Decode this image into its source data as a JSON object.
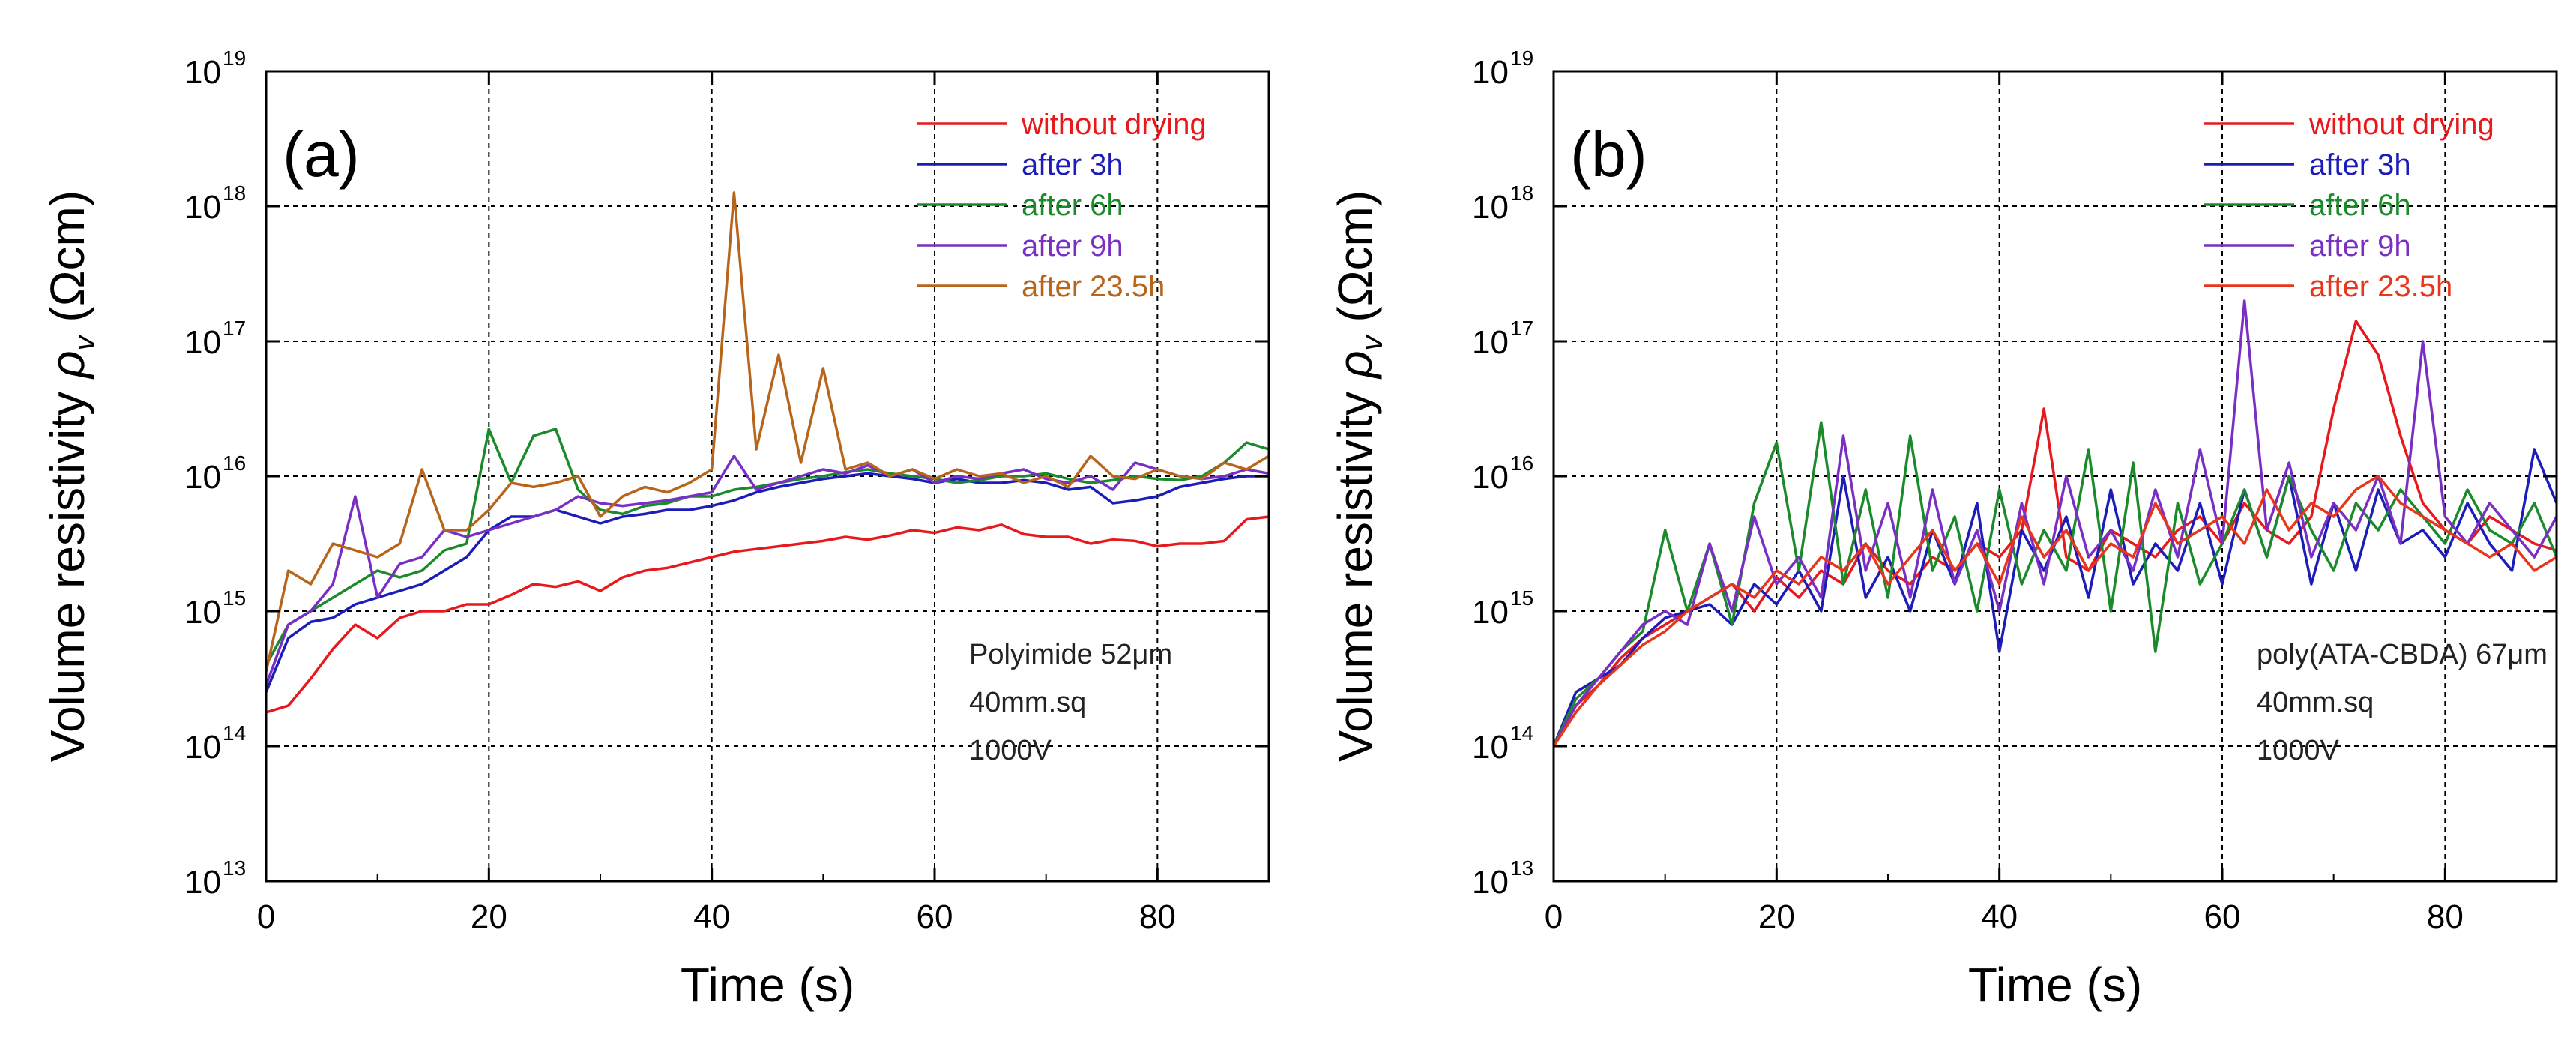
{
  "chart_data": [
    {
      "panel_label": "(a)",
      "type": "line",
      "title": "",
      "xlabel": "Time (s)",
      "ylabel": "Volume resistivity ρv (Ωcm)",
      "ylabel_main": "Volume resistivity ",
      "ylabel_symbol": "ρ",
      "ylabel_sub": "v",
      "ylabel_unit": " (Ωcm)",
      "xlim": [
        0,
        90
      ],
      "ylim_exp": [
        13,
        19
      ],
      "y_scale": "log",
      "xticks": [
        0,
        20,
        40,
        60,
        80
      ],
      "xtick_labels": [
        "0",
        "20",
        "40",
        "60",
        "80"
      ],
      "yticks_exp": [
        13,
        14,
        15,
        16,
        17,
        18,
        19
      ],
      "ytick_base": "10",
      "ytick_exponents": [
        "13",
        "14",
        "15",
        "16",
        "17",
        "18",
        "19"
      ],
      "grid": true,
      "legend_position": "top-right",
      "annotations": [
        "Polyimide 52μm",
        "40mm.sq",
        "1000V"
      ],
      "x": [
        0,
        2,
        4,
        6,
        8,
        10,
        12,
        14,
        16,
        18,
        20,
        22,
        24,
        26,
        28,
        30,
        32,
        34,
        36,
        38,
        40,
        42,
        44,
        46,
        48,
        50,
        52,
        54,
        56,
        58,
        60,
        62,
        64,
        66,
        68,
        70,
        72,
        74,
        76,
        78,
        80,
        82,
        84,
        86,
        88,
        90
      ],
      "series": [
        {
          "name": "without drying",
          "color": "#e8191d",
          "log10_values": [
            14.25,
            14.3,
            14.5,
            14.72,
            14.9,
            14.8,
            14.95,
            15.0,
            15.0,
            15.05,
            15.05,
            15.12,
            15.2,
            15.18,
            15.22,
            15.15,
            15.25,
            15.3,
            15.32,
            15.36,
            15.4,
            15.44,
            15.46,
            15.48,
            15.5,
            15.52,
            15.55,
            15.53,
            15.56,
            15.6,
            15.58,
            15.62,
            15.6,
            15.64,
            15.57,
            15.55,
            15.55,
            15.5,
            15.53,
            15.52,
            15.48,
            15.5,
            15.5,
            15.52,
            15.68,
            15.7
          ]
        },
        {
          "name": "after 3h",
          "color": "#1c1cb8",
          "log10_values": [
            14.4,
            14.8,
            14.92,
            14.95,
            15.05,
            15.1,
            15.15,
            15.2,
            15.3,
            15.4,
            15.6,
            15.7,
            15.7,
            15.75,
            15.7,
            15.65,
            15.7,
            15.72,
            15.75,
            15.75,
            15.78,
            15.82,
            15.88,
            15.92,
            15.95,
            15.98,
            16.0,
            16.02,
            16.0,
            15.98,
            15.95,
            15.98,
            15.95,
            15.95,
            15.97,
            15.95,
            15.9,
            15.92,
            15.8,
            15.82,
            15.85,
            15.92,
            15.95,
            15.98,
            16.0,
            16.0
          ]
        },
        {
          "name": "after 6h",
          "color": "#1a8a2a",
          "log10_values": [
            14.6,
            14.9,
            15.0,
            15.1,
            15.2,
            15.3,
            15.25,
            15.3,
            15.45,
            15.5,
            16.35,
            15.95,
            16.3,
            16.35,
            15.9,
            15.75,
            15.72,
            15.78,
            15.8,
            15.85,
            15.85,
            15.9,
            15.92,
            15.95,
            15.98,
            16.0,
            16.03,
            16.05,
            16.02,
            16.0,
            15.98,
            15.95,
            15.97,
            16.0,
            16.0,
            16.02,
            15.98,
            15.95,
            15.97,
            16.0,
            15.98,
            15.97,
            16.0,
            16.1,
            16.25,
            16.2
          ]
        },
        {
          "name": "after 9h",
          "color": "#7a2fc4",
          "log10_values": [
            14.45,
            14.9,
            15.0,
            15.2,
            15.85,
            15.1,
            15.35,
            15.4,
            15.6,
            15.55,
            15.6,
            15.65,
            15.7,
            15.75,
            15.85,
            15.8,
            15.78,
            15.8,
            15.82,
            15.85,
            15.88,
            16.15,
            15.9,
            15.95,
            16.0,
            16.05,
            16.02,
            16.08,
            16.0,
            16.05,
            15.95,
            16.0,
            15.98,
            16.02,
            16.05,
            15.98,
            15.95,
            16.0,
            15.9,
            16.1,
            16.05,
            16.0,
            15.98,
            16.0,
            16.05,
            16.02
          ]
        },
        {
          "name": "after 23.5h",
          "color": "#b8651c",
          "log10_values": [
            14.55,
            15.3,
            15.2,
            15.5,
            15.45,
            15.4,
            15.5,
            16.05,
            15.6,
            15.6,
            15.75,
            15.95,
            15.92,
            15.95,
            16.0,
            15.7,
            15.85,
            15.92,
            15.88,
            15.95,
            16.05,
            18.1,
            16.2,
            16.9,
            16.1,
            16.8,
            16.05,
            16.1,
            16.0,
            16.05,
            15.98,
            16.05,
            16.0,
            16.02,
            15.95,
            16.0,
            15.92,
            16.15,
            16.0,
            15.98,
            16.05,
            16.0,
            15.98,
            16.1,
            16.05,
            16.15
          ]
        }
      ]
    },
    {
      "panel_label": "(b)",
      "type": "line",
      "title": "",
      "xlabel": "Time (s)",
      "ylabel": "Volume resistivity ρv (Ωcm)",
      "ylabel_main": "Volume resistivity ",
      "ylabel_symbol": "ρ",
      "ylabel_sub": "v",
      "ylabel_unit": " (Ωcm)",
      "xlim": [
        0,
        90
      ],
      "ylim_exp": [
        13,
        19
      ],
      "y_scale": "log",
      "xticks": [
        0,
        20,
        40,
        60,
        80
      ],
      "xtick_labels": [
        "0",
        "20",
        "40",
        "60",
        "80"
      ],
      "yticks_exp": [
        13,
        14,
        15,
        16,
        17,
        18,
        19
      ],
      "ytick_base": "10",
      "ytick_exponents": [
        "13",
        "14",
        "15",
        "16",
        "17",
        "18",
        "19"
      ],
      "grid": true,
      "legend_position": "top-right",
      "annotations": [
        "poly(ATA-CBDA) 67μm",
        "40mm.sq",
        "1000V"
      ],
      "x": [
        0,
        2,
        4,
        6,
        8,
        10,
        12,
        14,
        16,
        18,
        20,
        22,
        24,
        26,
        28,
        30,
        32,
        34,
        36,
        38,
        40,
        42,
        44,
        46,
        48,
        50,
        52,
        54,
        56,
        58,
        60,
        62,
        64,
        66,
        68,
        70,
        72,
        74,
        76,
        78,
        80,
        82,
        84,
        86,
        88,
        90
      ],
      "series": [
        {
          "name": "without drying",
          "color": "#e8191d",
          "log10_values": [
            14.0,
            14.3,
            14.45,
            14.65,
            14.8,
            14.9,
            15.0,
            15.1,
            15.2,
            15.0,
            15.25,
            15.1,
            15.3,
            15.2,
            15.5,
            15.3,
            15.2,
            15.4,
            15.3,
            15.5,
            15.4,
            15.6,
            16.5,
            15.4,
            15.3,
            15.6,
            15.5,
            15.4,
            15.6,
            15.7,
            15.5,
            15.8,
            15.6,
            15.5,
            15.7,
            16.5,
            17.15,
            16.9,
            16.3,
            15.8,
            15.6,
            15.5,
            15.7,
            15.6,
            15.5,
            15.45
          ]
        },
        {
          "name": "after 3h",
          "color": "#1c1cb8",
          "log10_values": [
            14.0,
            14.4,
            14.5,
            14.6,
            14.8,
            14.95,
            15.0,
            15.05,
            14.9,
            15.2,
            15.05,
            15.3,
            15.0,
            16.0,
            15.1,
            15.4,
            15.0,
            15.6,
            15.2,
            15.8,
            14.7,
            15.6,
            15.3,
            15.7,
            15.1,
            15.9,
            15.2,
            15.5,
            15.3,
            15.8,
            15.2,
            15.9,
            15.4,
            16.0,
            15.2,
            15.8,
            15.3,
            15.9,
            15.5,
            15.6,
            15.4,
            15.8,
            15.5,
            15.3,
            16.2,
            15.8
          ]
        },
        {
          "name": "after 6h",
          "color": "#1a8a2a",
          "log10_values": [
            14.0,
            14.35,
            14.5,
            14.7,
            14.85,
            15.6,
            15.0,
            15.5,
            14.9,
            15.8,
            16.25,
            15.3,
            16.4,
            15.2,
            15.9,
            15.1,
            16.3,
            15.3,
            15.7,
            15.0,
            15.9,
            15.2,
            15.6,
            15.3,
            16.2,
            15.0,
            16.1,
            14.7,
            15.8,
            15.2,
            15.5,
            15.9,
            15.4,
            16.0,
            15.6,
            15.3,
            15.8,
            15.6,
            15.9,
            15.7,
            15.5,
            15.9,
            15.6,
            15.5,
            15.8,
            15.4
          ]
        },
        {
          "name": "after 9h",
          "color": "#7a2fc4",
          "log10_values": [
            14.0,
            14.3,
            14.5,
            14.7,
            14.9,
            15.0,
            14.9,
            15.5,
            15.0,
            15.7,
            15.2,
            15.4,
            15.1,
            16.3,
            15.3,
            15.8,
            15.1,
            15.9,
            15.2,
            15.6,
            15.0,
            15.8,
            15.2,
            16.0,
            15.4,
            15.6,
            15.3,
            15.9,
            15.4,
            16.2,
            15.5,
            17.3,
            15.6,
            16.1,
            15.4,
            15.8,
            15.6,
            16.0,
            15.5,
            17.0,
            15.7,
            15.5,
            15.8,
            15.6,
            15.4,
            15.7
          ]
        },
        {
          "name": "after 23.5h",
          "color": "#e8361d",
          "log10_values": [
            14.0,
            14.25,
            14.45,
            14.6,
            14.75,
            14.85,
            15.0,
            15.1,
            15.2,
            15.1,
            15.3,
            15.2,
            15.4,
            15.3,
            15.5,
            15.2,
            15.4,
            15.6,
            15.3,
            15.5,
            15.2,
            15.7,
            15.4,
            15.6,
            15.3,
            15.5,
            15.4,
            15.8,
            15.5,
            15.6,
            15.7,
            15.5,
            15.9,
            15.6,
            15.8,
            15.7,
            15.9,
            16.0,
            15.8,
            15.7,
            15.6,
            15.5,
            15.4,
            15.5,
            15.3,
            15.4
          ]
        }
      ]
    }
  ]
}
